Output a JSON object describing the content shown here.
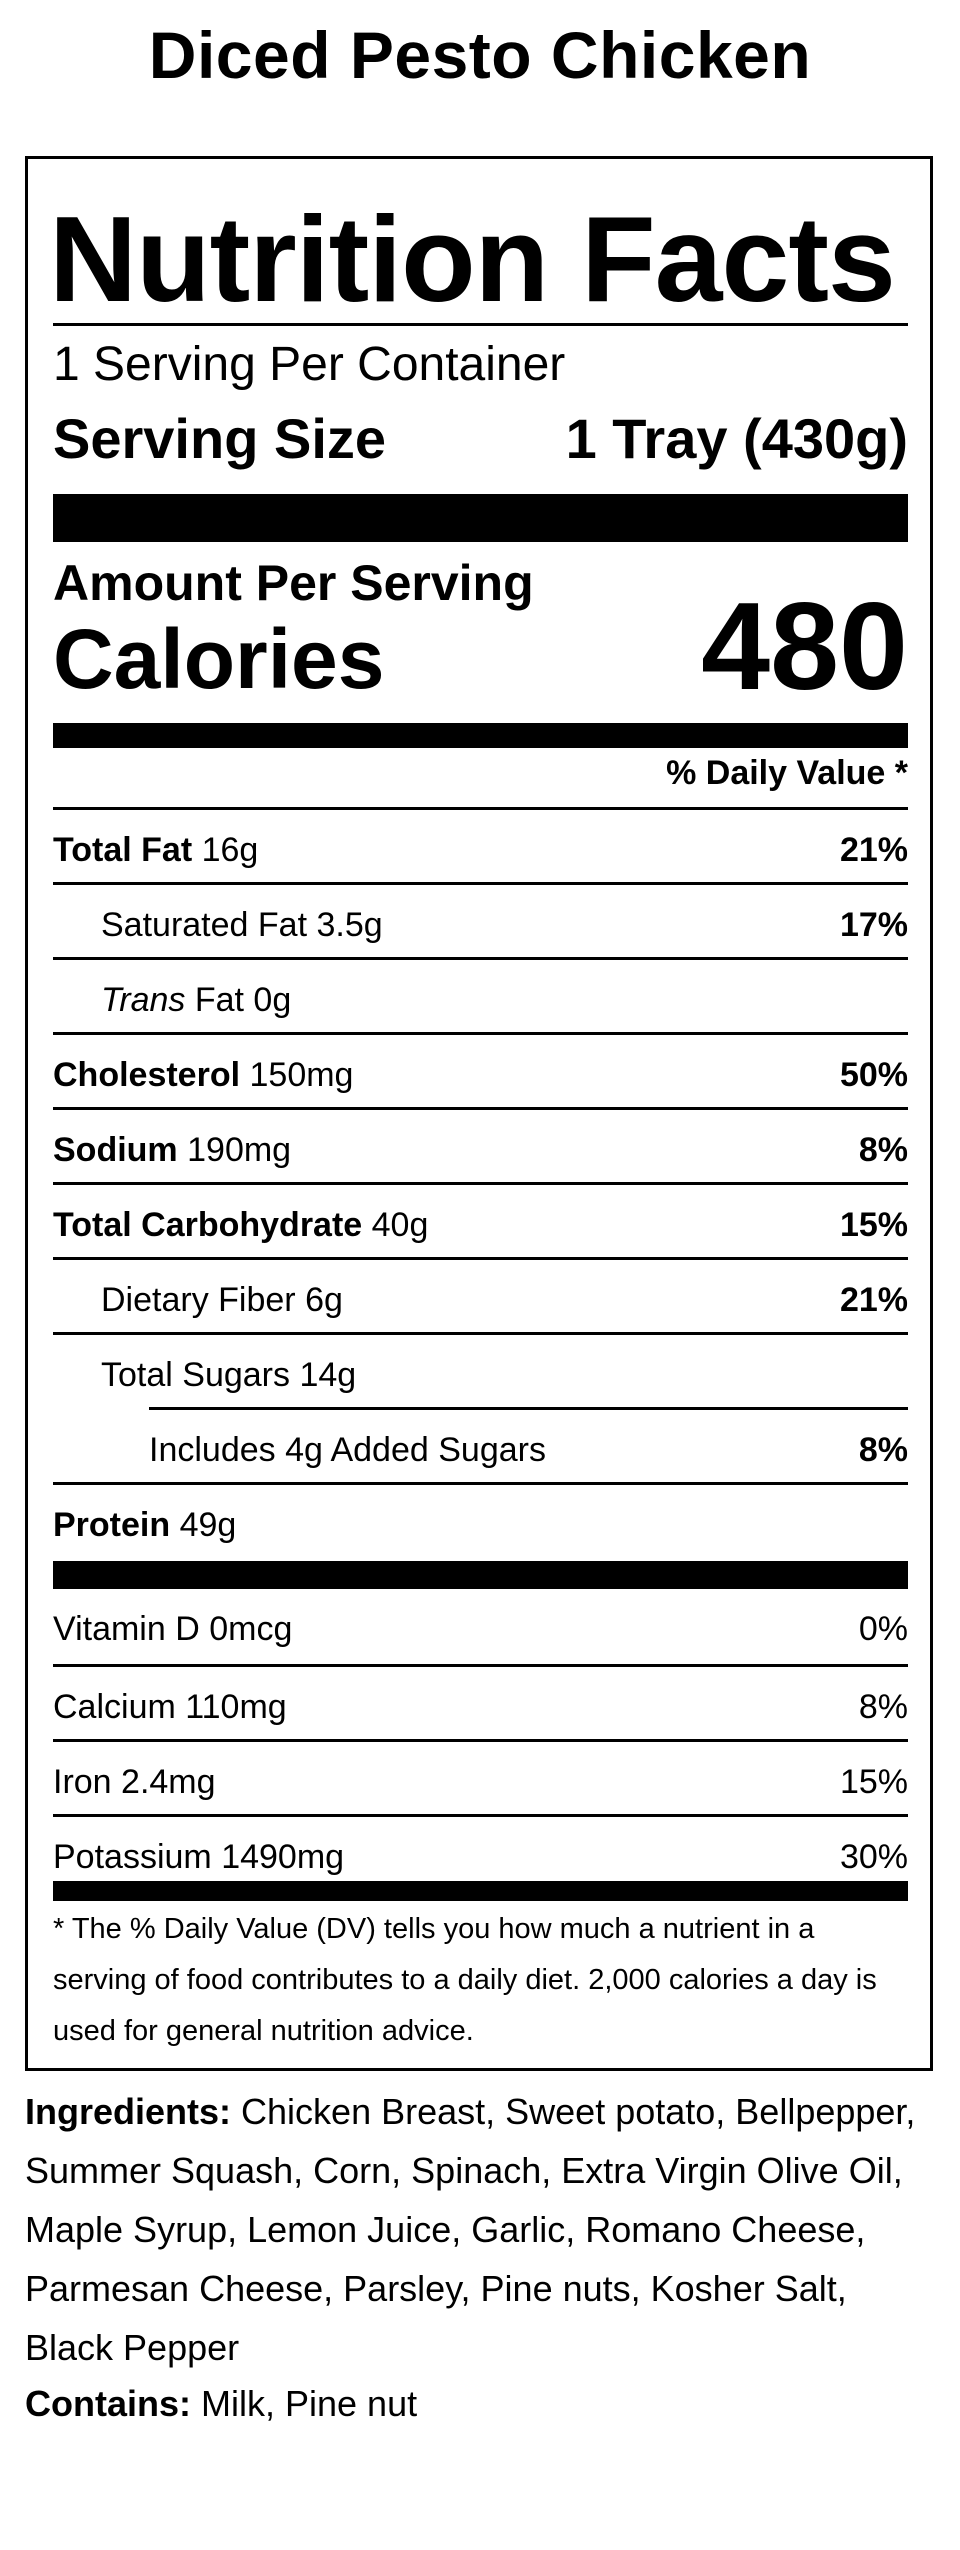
{
  "product": {
    "title": "Diced Pesto Chicken"
  },
  "label": {
    "heading": "Nutrition Facts",
    "servings_per_container": "1 Serving Per Container",
    "serving_size_label": "Serving Size",
    "serving_size_value": "1 Tray (430g)",
    "amount_per_serving": "Amount Per Serving",
    "calories_label": "Calories",
    "calories_value": "480",
    "dv_header": "% Daily Value *"
  },
  "nutrients": [
    {
      "name": "Total Fat",
      "amount": "16g",
      "dv": "21%"
    },
    {
      "name": "Saturated Fat",
      "amount": "3.5g",
      "dv": "17%"
    },
    {
      "name": "Trans",
      "suffix": "Fat",
      "amount": "0g",
      "dv": ""
    },
    {
      "name": "Cholesterol",
      "amount": "150mg",
      "dv": "50%"
    },
    {
      "name": "Sodium",
      "amount": "190mg",
      "dv": "8%"
    },
    {
      "name": "Total Carbohydrate",
      "amount": "40g",
      "dv": "15%"
    },
    {
      "name": "Dietary Fiber",
      "amount": "6g",
      "dv": "21%"
    },
    {
      "name": "Total Sugars",
      "amount": "14g",
      "dv": ""
    },
    {
      "name": "Includes 4g Added Sugars",
      "amount": "",
      "dv": "8%"
    },
    {
      "name": "Protein",
      "amount": "49g",
      "dv": ""
    }
  ],
  "micronutrients": [
    {
      "name": "Vitamin D",
      "amount": "0mcg",
      "dv": "0%"
    },
    {
      "name": "Calcium",
      "amount": "110mg",
      "dv": "8%"
    },
    {
      "name": "Iron",
      "amount": "2.4mg",
      "dv": "15%"
    },
    {
      "name": "Potassium",
      "amount": "1490mg",
      "dv": "30%"
    }
  ],
  "footnote": "* The % Daily Value (DV) tells you how much a nutrient in a serving of food contributes to a daily diet. 2,000 calories a day is used for general nutrition advice.",
  "ingredients": {
    "label": "Ingredients:",
    "text": "Chicken Breast, Sweet potato, Bellpepper, Summer Squash, Corn, Spinach, Extra Virgin Olive Oil, Maple Syrup, Lemon Juice, Garlic, Romano Cheese, Parmesan Cheese, Parsley, Pine nuts, Kosher Salt, Black Pepper"
  },
  "contains": {
    "label": "Contains:",
    "text": "Milk, Pine nut"
  }
}
